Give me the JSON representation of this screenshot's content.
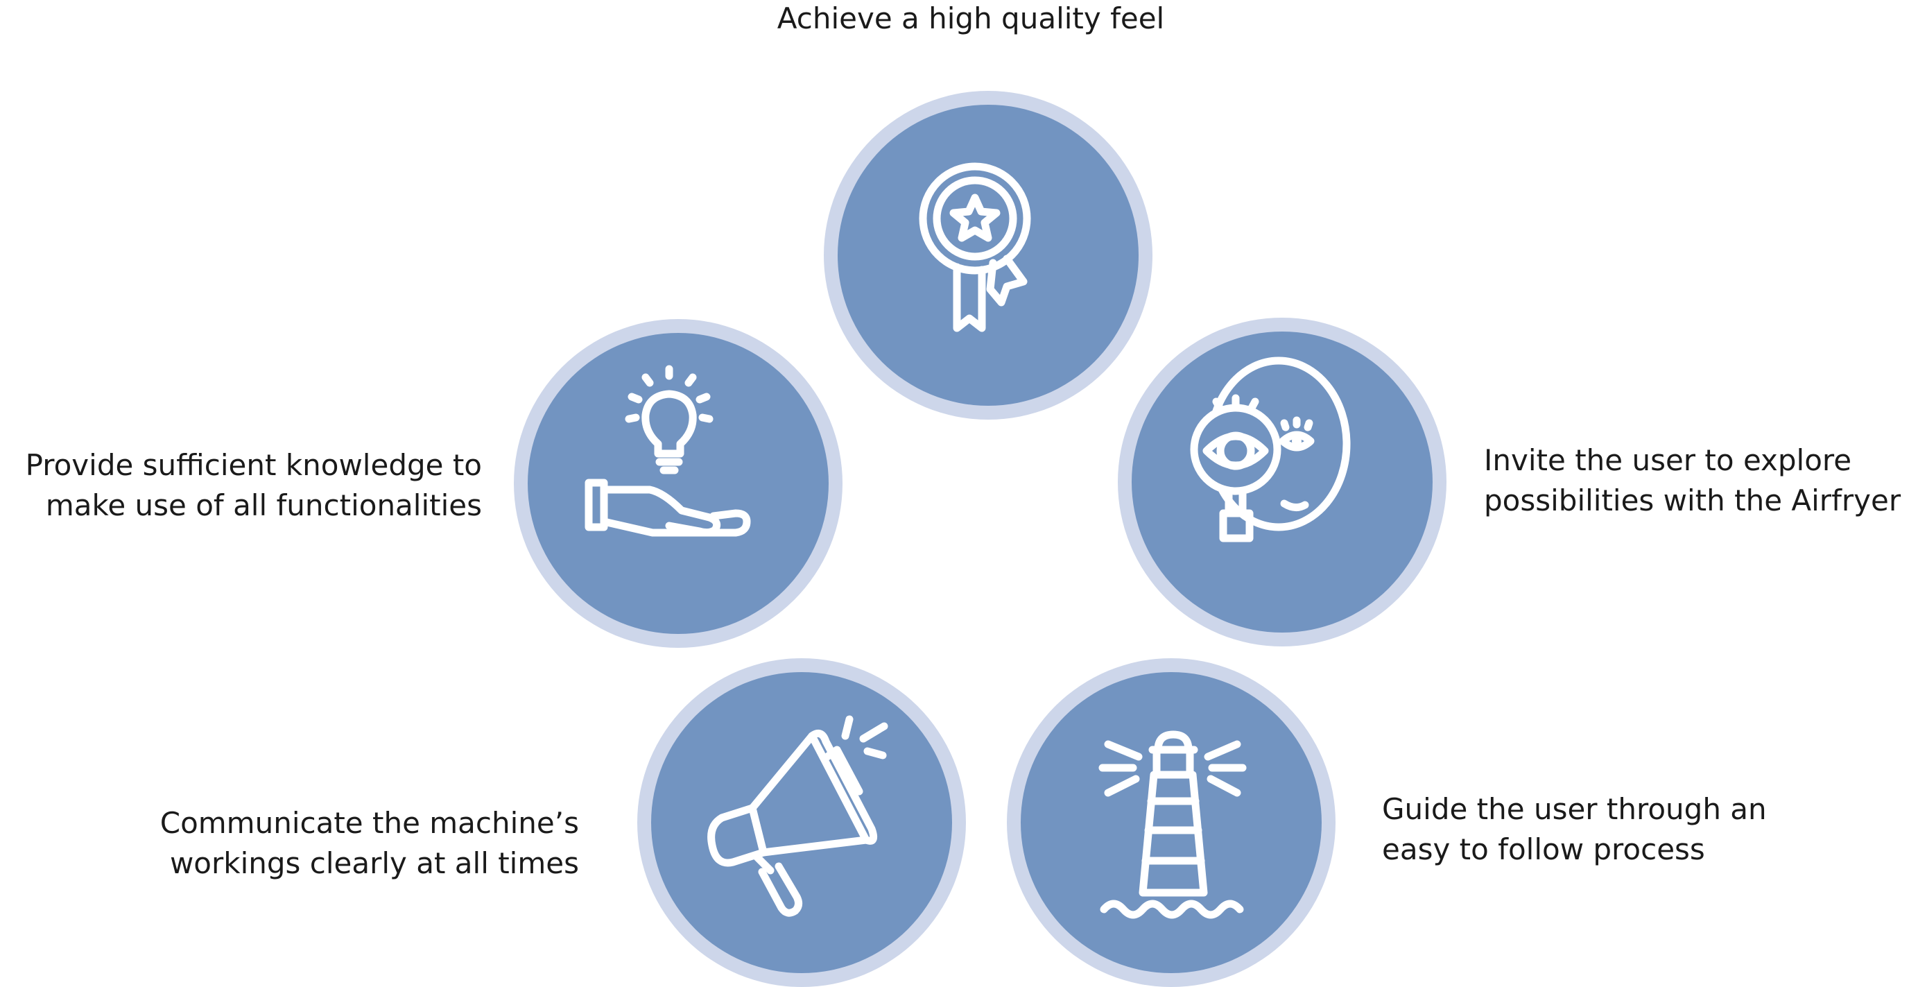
{
  "goals": [
    {
      "id": "quality",
      "label": "Achieve a high quality feel",
      "icon": "award-medal-icon"
    },
    {
      "id": "explore",
      "label": "Invite the user to explore\npossibilities with the Airfryer",
      "icon": "magnifier-eye-icon"
    },
    {
      "id": "guide",
      "label": "Guide the user through an\neasy to follow process",
      "icon": "lighthouse-icon"
    },
    {
      "id": "communicate",
      "label": "Communicate the machine’s\nworkings clearly at all times",
      "icon": "megaphone-icon"
    },
    {
      "id": "knowledge",
      "label": "Provide sufficient knowledge to\nmake use of all functionalities",
      "icon": "hand-lightbulb-icon"
    }
  ],
  "colors": {
    "outer_ring": "#cdd6ea",
    "inner_fill": "#7294c1",
    "icon_stroke": "#ffffff",
    "text": "#1a1a1a"
  }
}
